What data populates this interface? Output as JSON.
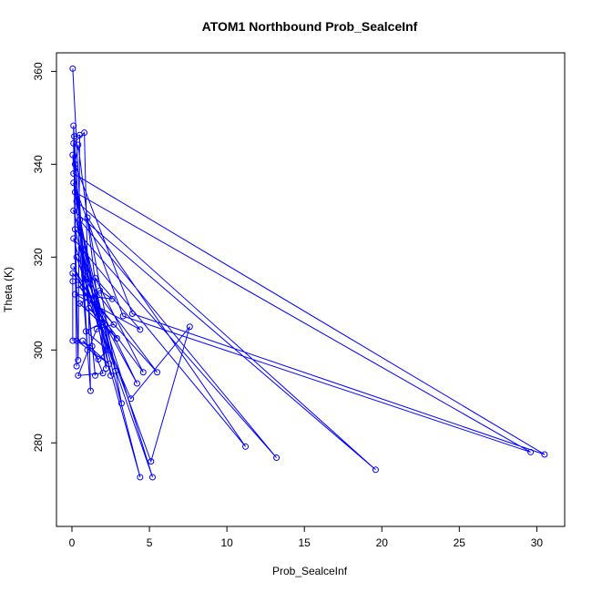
{
  "chart_data": {
    "type": "line",
    "title": "ATOM1 Northbound Prob_SealceInf",
    "x_label": "Prob_SealceInf",
    "y_label": "Theta (K)",
    "color": "#0000ff",
    "markers": true,
    "x": [
      0.05,
      1.0,
      0.1,
      0.3,
      0.15,
      0.5,
      0.4,
      0.1,
      0.8,
      1.2,
      0.05,
      1.5,
      0.2,
      3.9,
      30.5,
      0.1,
      0.4,
      2.2,
      0.1,
      3.3,
      29.6,
      0.2,
      2.5,
      0.3,
      19.6,
      0.1,
      2.8,
      0.5,
      13.2,
      0.2,
      3.2,
      1.0,
      11.2,
      0.1,
      4.4,
      0.6,
      5.2,
      0.3,
      5.1,
      7.6,
      3.8,
      0.1,
      4.2,
      0.8,
      5.5,
      0.4,
      4.6,
      1.5,
      4.4,
      0.2,
      2.6,
      1.8,
      0.5,
      2.9,
      1.1,
      2.0,
      0.9,
      2.3,
      1.7,
      0.7,
      2.4,
      0.3,
      1.3,
      2.0,
      0.4,
      1.6,
      2.7,
      0.05,
      0.05,
      0.05
    ],
    "y": [
      360.6,
      300,
      348.3,
      296.5,
      346,
      346.3,
      297.8,
      344.5,
      346.8,
      291.2,
      342,
      294.5,
      340,
      307.8,
      277.5,
      338,
      344.2,
      296,
      336,
      307.3,
      278,
      334,
      294.5,
      332,
      274.2,
      330,
      295.5,
      328,
      276.8,
      326,
      288.5,
      328.5,
      279.2,
      324,
      272.6,
      322,
      272.6,
      320,
      276,
      305,
      289.5,
      318,
      292.8,
      316,
      295.2,
      314,
      295.2,
      315.5,
      304.4,
      312,
      311,
      312.8,
      310,
      302.5,
      309,
      306,
      304,
      300,
      298,
      302,
      297,
      302,
      300.8,
      295,
      294.5,
      304.5,
      305.5,
      316.5,
      314.8,
      302
    ],
    "xlim": [
      -1.0,
      31.8
    ],
    "ylim": [
      262,
      364
    ],
    "xticks": [
      0,
      5,
      10,
      15,
      20,
      25,
      30
    ],
    "yticks": [
      280,
      300,
      320,
      340,
      360
    ]
  }
}
